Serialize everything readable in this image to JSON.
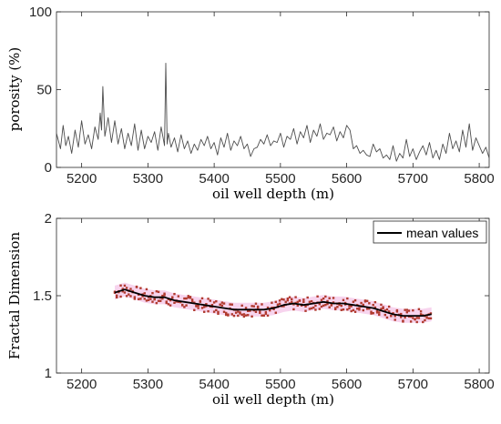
{
  "chart_data": [
    {
      "type": "line",
      "xlabel": "oil well depth (m)",
      "ylabel": "porosity (%)",
      "xlim": [
        5162,
        5815
      ],
      "ylim": [
        0,
        100
      ],
      "x_ticks": [
        5200,
        5300,
        5400,
        5500,
        5600,
        5700,
        5800
      ],
      "y_ticks": [
        0,
        50,
        100
      ],
      "grid": false,
      "series": [
        {
          "color": "#4d4d4d",
          "x": [
            5162,
            5168,
            5172,
            5176,
            5180,
            5185,
            5190,
            5195,
            5200,
            5205,
            5210,
            5215,
            5220,
            5225,
            5228,
            5230,
            5232,
            5235,
            5240,
            5245,
            5250,
            5255,
            5260,
            5265,
            5270,
            5275,
            5280,
            5285,
            5290,
            5295,
            5300,
            5305,
            5310,
            5315,
            5320,
            5325,
            5327,
            5328,
            5329,
            5331,
            5335,
            5340,
            5345,
            5350,
            5355,
            5360,
            5365,
            5370,
            5375,
            5380,
            5385,
            5390,
            5395,
            5400,
            5405,
            5410,
            5415,
            5420,
            5425,
            5430,
            5435,
            5440,
            5445,
            5450,
            5455,
            5460,
            5465,
            5470,
            5475,
            5480,
            5485,
            5490,
            5495,
            5500,
            5505,
            5510,
            5515,
            5520,
            5525,
            5530,
            5535,
            5540,
            5545,
            5550,
            5555,
            5560,
            5565,
            5570,
            5575,
            5580,
            5585,
            5590,
            5595,
            5600,
            5605,
            5610,
            5615,
            5620,
            5625,
            5630,
            5635,
            5640,
            5645,
            5650,
            5655,
            5660,
            5665,
            5670,
            5675,
            5680,
            5685,
            5690,
            5695,
            5700,
            5705,
            5710,
            5715,
            5720,
            5725,
            5730,
            5735,
            5740,
            5745,
            5750,
            5755,
            5760,
            5765,
            5770,
            5775,
            5780,
            5785,
            5790,
            5795,
            5800,
            5805,
            5810,
            5815
          ],
          "y": [
            22,
            12,
            27,
            14,
            20,
            9,
            24,
            13,
            30,
            15,
            21,
            12,
            26,
            18,
            35,
            24,
            52,
            20,
            32,
            16,
            30,
            15,
            25,
            12,
            22,
            14,
            28,
            11,
            24,
            12,
            20,
            16,
            23,
            11,
            26,
            14,
            67,
            40,
            15,
            22,
            13,
            19,
            10,
            21,
            12,
            17,
            9,
            15,
            11,
            18,
            14,
            20,
            12,
            16,
            8,
            19,
            13,
            22,
            11,
            17,
            14,
            20,
            12,
            15,
            7,
            12,
            13,
            18,
            15,
            21,
            14,
            17,
            16,
            22,
            13,
            20,
            18,
            25,
            15,
            23,
            19,
            27,
            16,
            24,
            20,
            28,
            18,
            22,
            21,
            26,
            17,
            23,
            19,
            27,
            24,
            12,
            14,
            9,
            11,
            8,
            7,
            15,
            10,
            12,
            6,
            8,
            5,
            14,
            4,
            9,
            6,
            18,
            7,
            12,
            5,
            10,
            14,
            8,
            16,
            6,
            11,
            5,
            15,
            9,
            22,
            12,
            17,
            10,
            24,
            13,
            28,
            11,
            19,
            14,
            9,
            13,
            6
          ]
        }
      ]
    },
    {
      "type": "line",
      "xlabel": "oil well depth (m)",
      "ylabel": "Fractal Dimension",
      "xlim": [
        5162,
        5815
      ],
      "ylim": [
        1,
        2
      ],
      "x_ticks": [
        5200,
        5300,
        5400,
        5500,
        5600,
        5700,
        5800
      ],
      "y_ticks": [
        1,
        1.5,
        2
      ],
      "grid": false,
      "legend_position": "top-right",
      "band_color": "#f4c6e8",
      "point_color": "#b03a2e",
      "series": [
        {
          "name": "mean values",
          "color": "#000000",
          "x": [
            5250,
            5265,
            5280,
            5295,
            5310,
            5325,
            5340,
            5355,
            5370,
            5385,
            5400,
            5415,
            5430,
            5445,
            5460,
            5475,
            5490,
            5505,
            5520,
            5535,
            5550,
            5565,
            5580,
            5595,
            5610,
            5625,
            5640,
            5655,
            5670,
            5685,
            5700,
            5715,
            5728
          ],
          "y": [
            1.52,
            1.54,
            1.52,
            1.5,
            1.49,
            1.49,
            1.47,
            1.46,
            1.45,
            1.44,
            1.43,
            1.42,
            1.41,
            1.41,
            1.41,
            1.41,
            1.42,
            1.44,
            1.45,
            1.44,
            1.45,
            1.46,
            1.45,
            1.45,
            1.44,
            1.43,
            1.42,
            1.4,
            1.38,
            1.37,
            1.37,
            1.37,
            1.38
          ]
        }
      ]
    }
  ]
}
